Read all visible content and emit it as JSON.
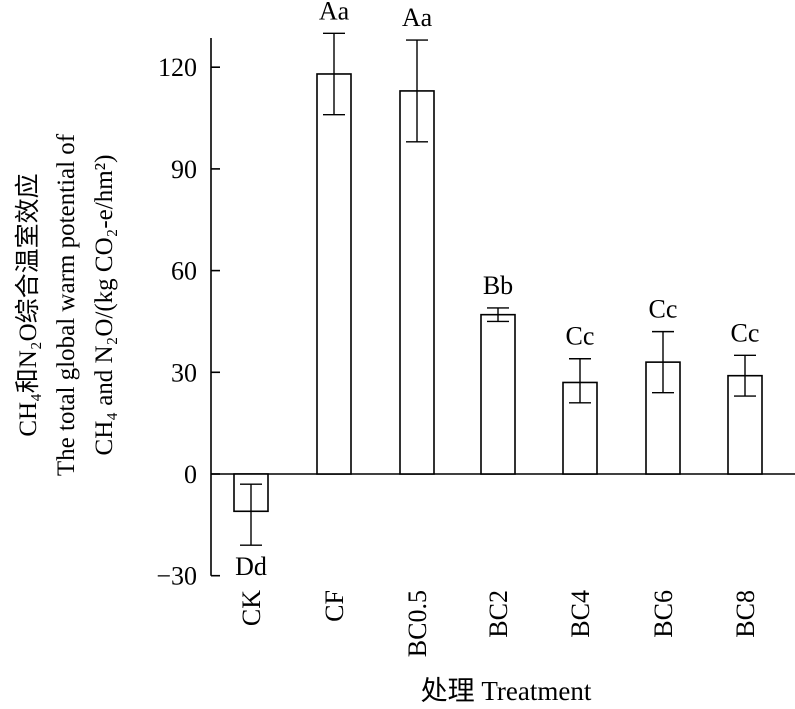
{
  "chart_data": {
    "type": "bar",
    "categories": [
      "CK",
      "CF",
      "BC0.5",
      "BC2",
      "BC4",
      "BC6",
      "BC8"
    ],
    "values": [
      -11,
      118,
      113,
      47,
      27,
      33,
      29
    ],
    "error_low": [
      -21,
      106,
      98,
      45,
      21,
      24,
      23
    ],
    "error_high": [
      -3,
      130,
      128,
      49,
      34,
      42,
      35
    ],
    "significance_labels": [
      "Dd",
      "Aa",
      "Aa",
      "Bb",
      "Cc",
      "Cc",
      "Cc"
    ],
    "xlabel": "处理 Treatment",
    "ylabel_lines": [
      "CH₄和N₂O综合温室效应",
      "The total global warm potential of",
      "CH₄ and N₂O/(kg CO₂-e/hm²)"
    ],
    "yticks": [
      -30,
      0,
      30,
      60,
      90,
      120
    ],
    "ytick_labels": [
      "−30",
      "0",
      "30",
      "60",
      "90",
      "120"
    ],
    "ylim": [
      -30,
      130
    ],
    "grid": false,
    "legend": "none",
    "bar_fill": "#ffffff",
    "stroke_color": "#000000"
  }
}
